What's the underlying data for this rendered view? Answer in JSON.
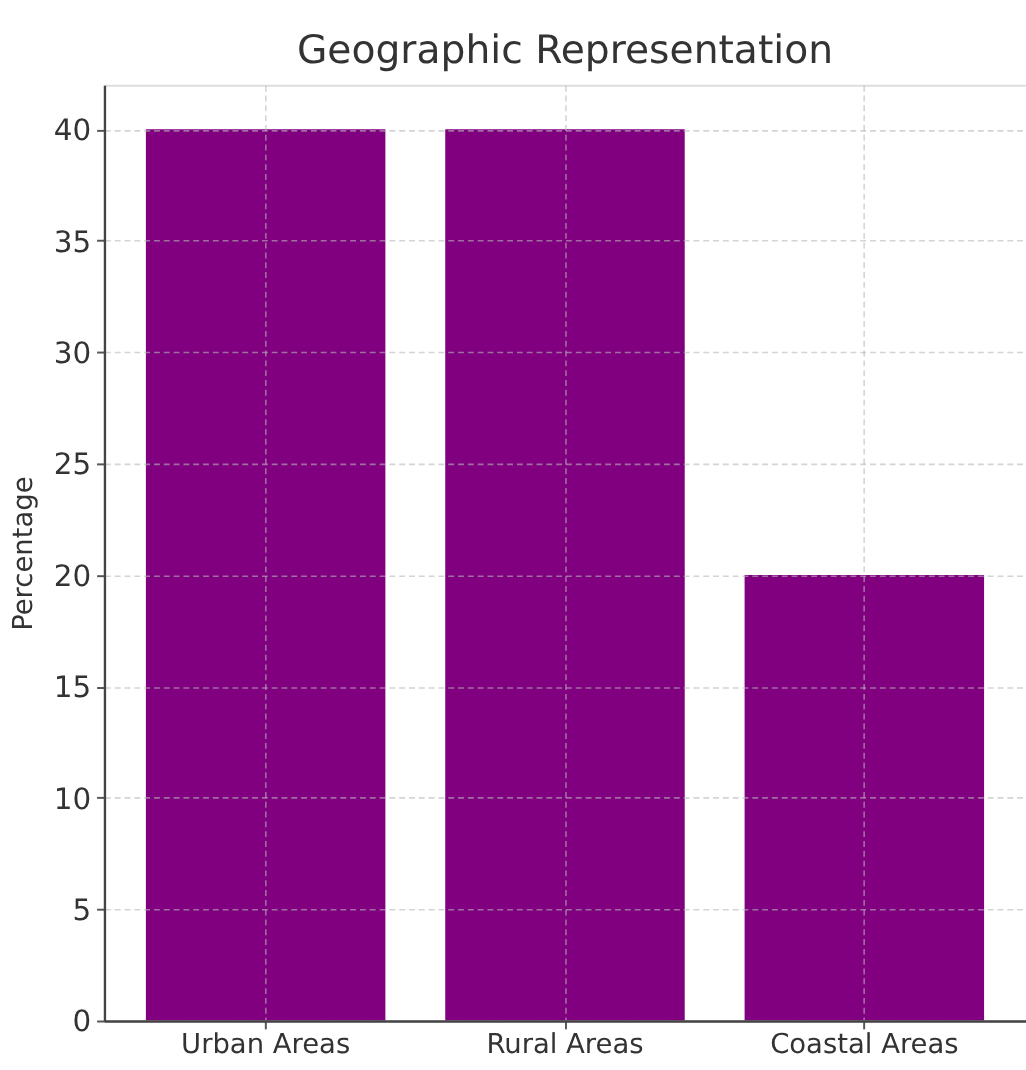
{
  "chart_data": {
    "type": "bar",
    "title": "Geographic Representation",
    "ylabel": "Percentage",
    "categories": [
      "Urban Areas",
      "Rural Areas",
      "Coastal Areas"
    ],
    "values": [
      40,
      40,
      20
    ],
    "color": "#800080",
    "ylim": [
      0,
      42
    ],
    "yticks": [
      0,
      5,
      10,
      15,
      20,
      25,
      30,
      35,
      40
    ],
    "grid": true
  }
}
